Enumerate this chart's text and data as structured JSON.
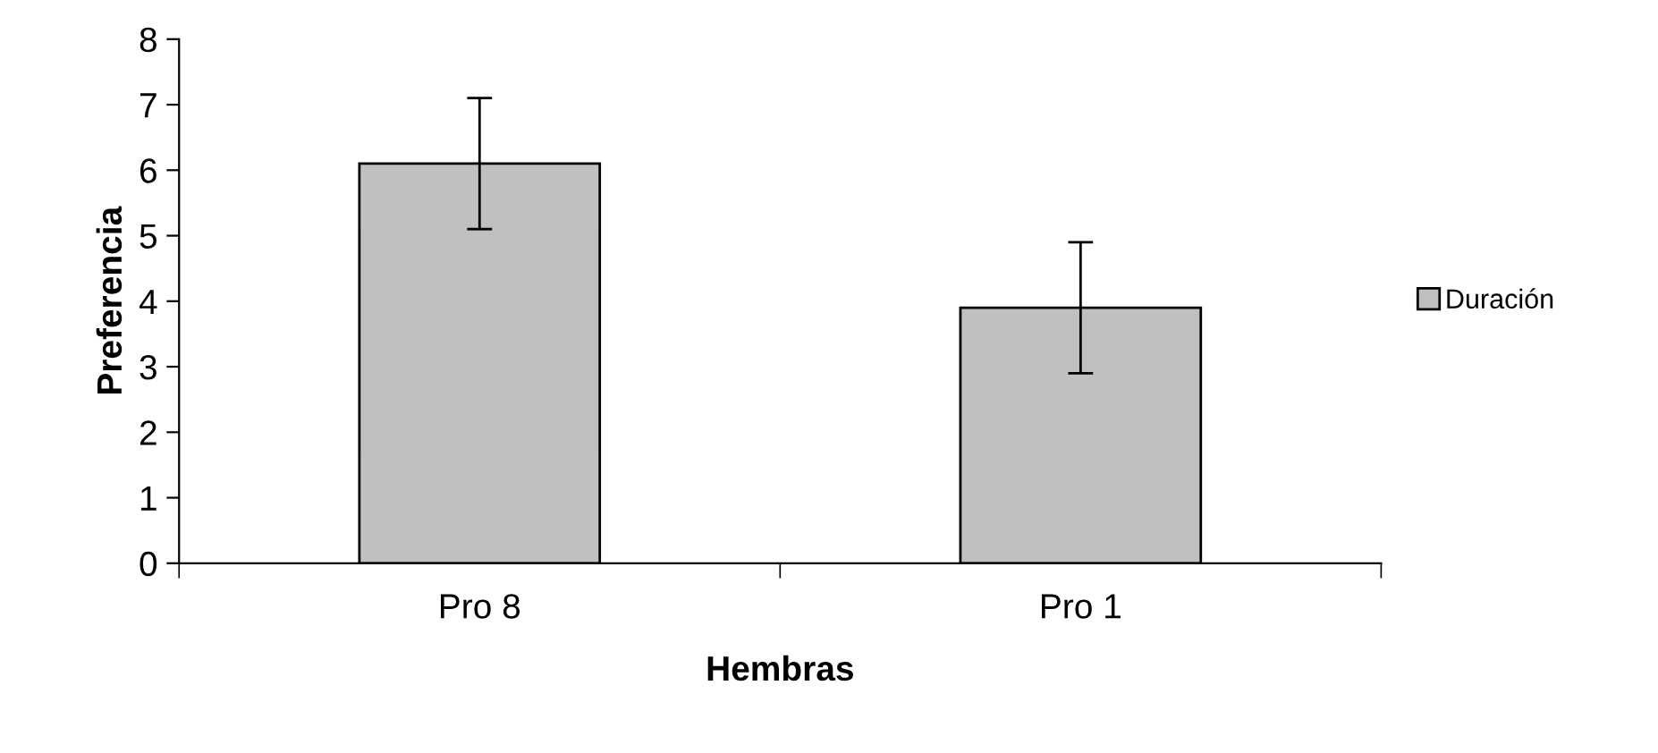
{
  "chart_data": {
    "type": "bar",
    "xlabel": "Hembras",
    "ylabel": "Preferencia",
    "categories": [
      "Pro 8",
      "Pro 1"
    ],
    "series": [
      {
        "name": "Duración",
        "color": "#c0c0c0",
        "values": [
          6.1,
          3.9
        ],
        "errors": [
          1.0,
          1.0
        ]
      }
    ],
    "ylim": [
      0,
      8
    ],
    "yticks": [
      0,
      1,
      2,
      3,
      4,
      5,
      6,
      7,
      8
    ],
    "grid": false,
    "legend": "right"
  }
}
